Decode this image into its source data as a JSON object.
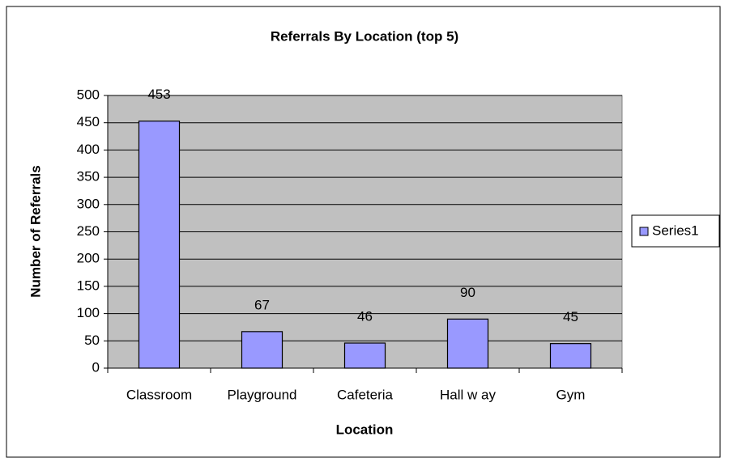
{
  "chart_data": {
    "type": "bar",
    "title": "Referrals By Location (top 5)",
    "x_label": "Location",
    "y_label": "Number of Referrals",
    "categories": [
      "Classroom",
      "Playground",
      "Cafeteria",
      "Hall w ay",
      "Gym"
    ],
    "series": [
      {
        "name": "Series1",
        "color": "#9999ff",
        "values": [
          453,
          67,
          46,
          90,
          45
        ]
      }
    ],
    "ylim": [
      0,
      500
    ],
    "yticks": [
      0,
      50,
      100,
      150,
      200,
      250,
      300,
      350,
      400,
      450,
      500
    ],
    "grid": true,
    "legend": "right"
  }
}
